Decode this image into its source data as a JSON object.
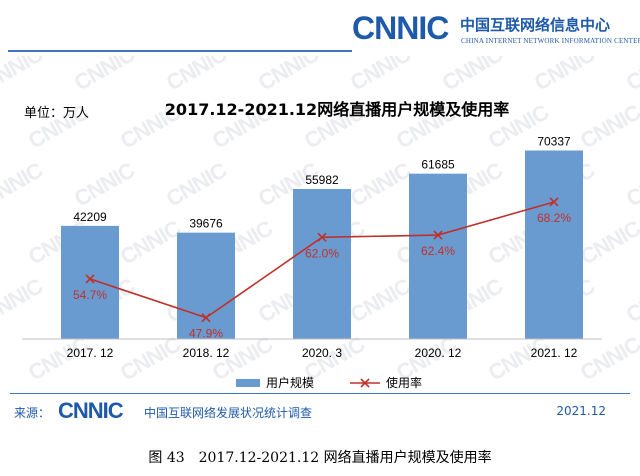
{
  "header": {
    "logo_text": "CNNIC",
    "org_name_cn": "中国互联网络信息中心",
    "org_name_en": "CHINA INTERNET NETWORK INFORMATION CENTER"
  },
  "watermark_text": "CNNIC",
  "unit_label": "单位：万人",
  "chart_data": {
    "type": "bar+line",
    "title": "2017.12-2021.12网络直播用户规模及使用率",
    "categories": [
      "2017. 12",
      "2018. 12",
      "2020. 3",
      "2020. 12",
      "2021. 12"
    ],
    "series": [
      {
        "name": "用户规模",
        "type": "bar",
        "values": [
          42209,
          39676,
          55982,
          61685,
          70337
        ],
        "labels": [
          "42209",
          "39676",
          "55982",
          "61685",
          "70337"
        ],
        "color": "#6a9bd0"
      },
      {
        "name": "使用率",
        "type": "line",
        "values": [
          54.7,
          47.9,
          62.0,
          62.4,
          68.2
        ],
        "labels": [
          "54.7%",
          "47.9%",
          "62.0%",
          "62.4%",
          "68.2%"
        ],
        "color": "#c0302a"
      }
    ],
    "legend_position": "bottom",
    "grid": false
  },
  "footer": {
    "source_label": "来源：",
    "logo_text": "CNNIC",
    "source_org": "中国互联网络发展状况统计调查",
    "date": "2021.12"
  },
  "caption": "图 43　2017.12-2021.12 网络直播用户规模及使用率"
}
